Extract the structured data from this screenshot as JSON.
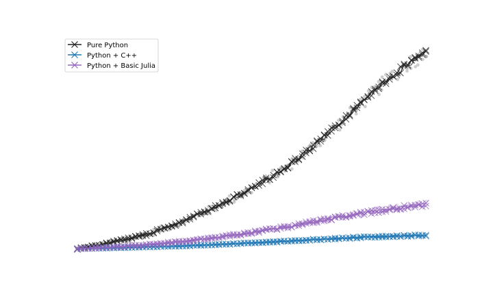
{
  "chart_data": {
    "type": "line",
    "title": "",
    "xlabel": "",
    "ylabel": "",
    "axes_visible": false,
    "grid": false,
    "legend_position": "top-left",
    "x_domain": [
      0,
      100
    ],
    "y_domain": [
      0,
      100
    ],
    "series": [
      {
        "name": "Pure Python",
        "color": "#222222",
        "marker": "x",
        "x": [
          0,
          10,
          20,
          30,
          40,
          50,
          60,
          70,
          80,
          90,
          100
        ],
        "y": [
          0,
          3.2,
          7.3,
          13.6,
          21.4,
          30.4,
          41.3,
          55.5,
          71.4,
          87.7,
          100
        ]
      },
      {
        "name": "Python + C++",
        "color": "#1f77b4",
        "marker": "x",
        "x": [
          0,
          10,
          20,
          30,
          40,
          50,
          60,
          70,
          80,
          90,
          100
        ],
        "y": [
          0,
          0.4,
          0.9,
          1.4,
          2.1,
          2.9,
          3.8,
          4.8,
          5.7,
          6.4,
          6.8
        ]
      },
      {
        "name": "Python + Basic Julia",
        "color": "#9467bd",
        "marker": "x",
        "x": [
          0,
          10,
          20,
          30,
          40,
          50,
          60,
          70,
          80,
          90,
          100
        ],
        "y": [
          0,
          0.8,
          2.0,
          3.7,
          5.7,
          8.2,
          11.1,
          14.3,
          17.6,
          20.1,
          22.5
        ]
      }
    ]
  }
}
